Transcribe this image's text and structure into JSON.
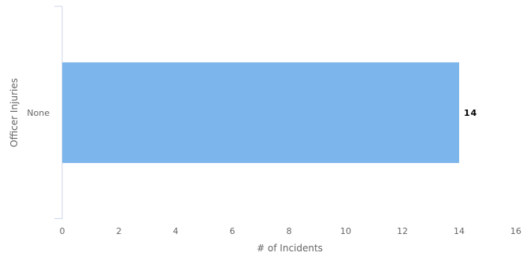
{
  "chart_data": {
    "type": "bar",
    "orientation": "horizontal",
    "categories": [
      "None"
    ],
    "values": [
      14
    ],
    "data_labels": [
      "14"
    ],
    "title": "",
    "xlabel": "# of Incidents",
    "ylabel": "Officer Injuries",
    "xlim": [
      0,
      16
    ],
    "x_ticks": [
      "0",
      "2",
      "4",
      "6",
      "8",
      "10",
      "12",
      "14",
      "16"
    ],
    "grid": false,
    "legend": "none",
    "bar_color": "#7cb5ec",
    "axis_color": "#ccd6eb"
  }
}
